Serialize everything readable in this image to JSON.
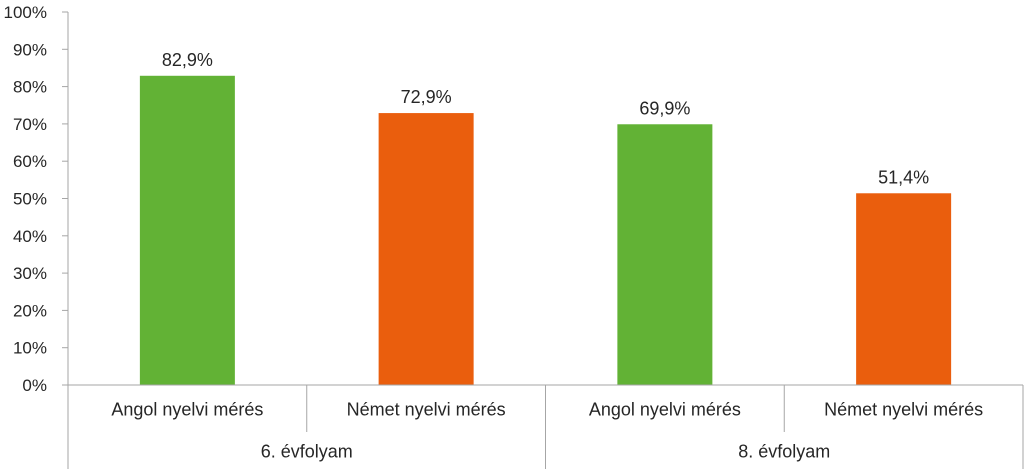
{
  "chart_data": {
    "type": "bar",
    "title": "",
    "xlabel": "",
    "ylabel": "",
    "ylim": [
      0,
      100
    ],
    "yticks": [
      0,
      10,
      20,
      30,
      40,
      50,
      60,
      70,
      80,
      90,
      100
    ],
    "ytick_labels": [
      "0%",
      "10%",
      "20%",
      "30%",
      "40%",
      "50%",
      "60%",
      "70%",
      "80%",
      "90%",
      "100%"
    ],
    "grid": false,
    "legend": "none",
    "groups": [
      {
        "label": "6. évfolyam",
        "categories": [
          "Angol nyelvi mérés",
          "Német nyelvi mérés"
        ],
        "values": [
          82.9,
          72.9
        ],
        "data_labels": [
          "82,9%",
          "72,9%"
        ],
        "colors": [
          "#62b235",
          "#ea5e0d"
        ]
      },
      {
        "label": "8. évfolyam",
        "categories": [
          "Angol nyelvi mérés",
          "Német nyelvi mérés"
        ],
        "values": [
          69.9,
          51.4
        ],
        "data_labels": [
          "69,9%",
          "51,4%"
        ],
        "colors": [
          "#62b235",
          "#ea5e0d"
        ]
      }
    ]
  }
}
